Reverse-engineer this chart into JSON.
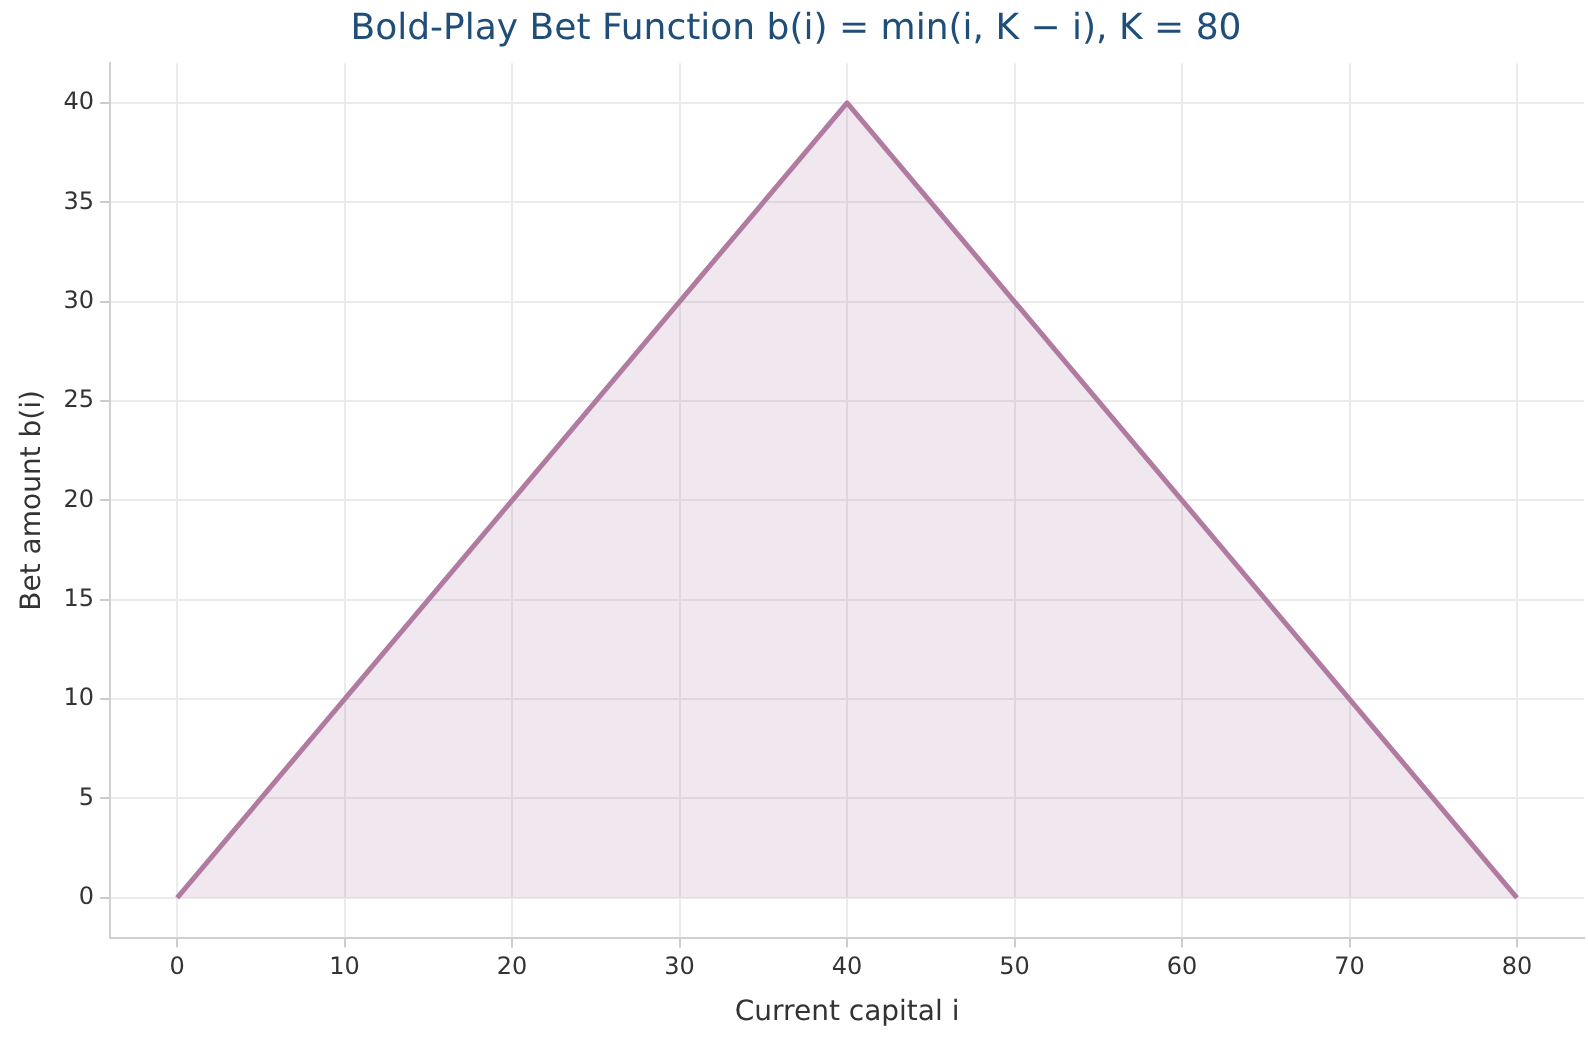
{
  "chart_data": {
    "type": "area",
    "title": "Bold-Play Bet Function b(i) = min(i, K − i), K = 80",
    "xlabel": "Current capital i",
    "ylabel": "Bet amount b(i)",
    "x": [
      0,
      40,
      80
    ],
    "series": [
      {
        "color": "#b07aa1",
        "values": [
          0,
          40,
          0
        ]
      }
    ],
    "xlim": [
      -4,
      84
    ],
    "xticks": [
      0,
      10,
      20,
      30,
      40,
      50,
      60,
      70,
      80
    ],
    "ylim": [
      -2,
      42
    ],
    "yticks": [
      0,
      5,
      10,
      15,
      20,
      25,
      30,
      35,
      40
    ],
    "grid": true,
    "legend": false
  }
}
